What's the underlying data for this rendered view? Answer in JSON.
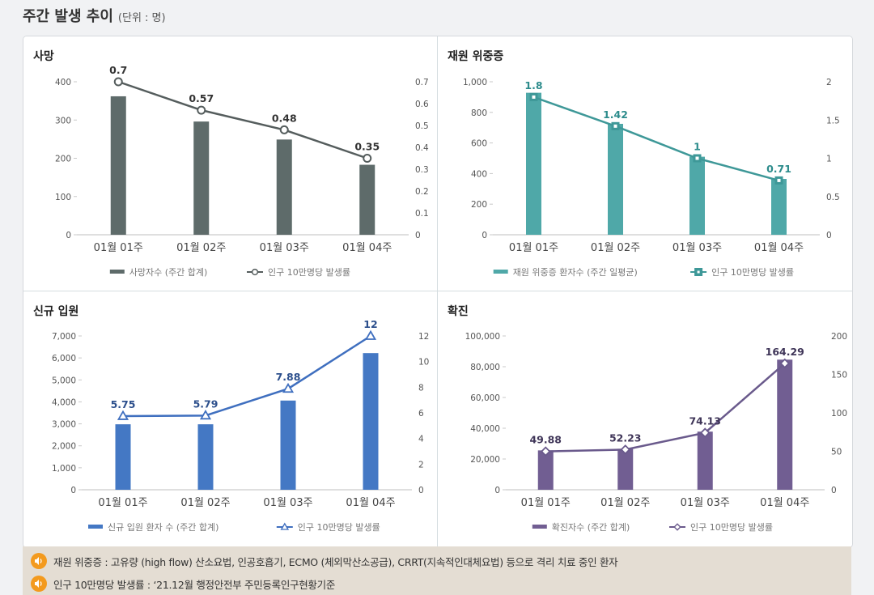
{
  "header": {
    "title": "주간 발생 추이",
    "unit": "(단위 : 명)"
  },
  "panels": [
    {
      "title": "사망",
      "chart_data": {
        "type": "bar",
        "categories": [
          "01월 01주",
          "01월 02주",
          "01월 03주",
          "01월 04주"
        ],
        "series": [
          {
            "name": "사망자수 (주간 합계)",
            "type": "bar",
            "axis": "left",
            "values": [
              362,
              296,
              249,
              183
            ]
          },
          {
            "name": "인구 10만명당 발생률",
            "type": "line",
            "axis": "right",
            "marker": "circle",
            "values": [
              0.7,
              0.57,
              0.48,
              0.35
            ],
            "labels": [
              "0.7",
              "0.57",
              "0.48",
              "0.35"
            ]
          }
        ],
        "y_left": {
          "min": 0,
          "max": 400,
          "ticks": [
            "0",
            "100",
            "200",
            "300",
            "400"
          ]
        },
        "y_right": {
          "min": 0,
          "max": 0.7,
          "ticks": [
            "0",
            "0.1",
            "0.2",
            "0.3",
            "0.4",
            "0.5",
            "0.6",
            "0.7"
          ]
        },
        "colors": {
          "bar": "#5e6b6a",
          "line": "#555d5d",
          "label": "#333333"
        },
        "legend": "bottom"
      }
    },
    {
      "title": "재원 위중증",
      "chart_data": {
        "type": "bar",
        "categories": [
          "01월 01주",
          "01월 02주",
          "01월 03주",
          "01월 04주"
        ],
        "series": [
          {
            "name": "재원 위중증 환자수 (주간 일평균)",
            "type": "bar",
            "axis": "left",
            "values": [
              928,
              725,
              510,
              365
            ]
          },
          {
            "name": "인구 10만명당 발생률",
            "type": "line",
            "axis": "right",
            "marker": "square",
            "values": [
              1.8,
              1.42,
              1,
              0.71
            ],
            "labels": [
              "1.8",
              "1.42",
              "1",
              "0.71"
            ]
          }
        ],
        "y_left": {
          "min": 0,
          "max": 1000,
          "ticks": [
            "0",
            "200",
            "400",
            "600",
            "800",
            "1,000"
          ]
        },
        "y_right": {
          "min": 0,
          "max": 2,
          "ticks": [
            "0",
            "0.5",
            "1",
            "1.5",
            "2"
          ]
        },
        "colors": {
          "bar": "#4fa8a8",
          "line": "#3e9898",
          "label": "#2d8c8c"
        },
        "legend": "bottom"
      }
    },
    {
      "title": "신규 입원",
      "chart_data": {
        "type": "bar",
        "categories": [
          "01월 01주",
          "01월 02주",
          "01월 03주",
          "01월 04주"
        ],
        "series": [
          {
            "name": "신규 입원 환자 수 (주간 합계)",
            "type": "bar",
            "axis": "left",
            "values": [
              2980,
              2980,
              4060,
              6220
            ]
          },
          {
            "name": "인구 10만명당 발생률",
            "type": "line",
            "axis": "right",
            "marker": "triangle",
            "values": [
              5.75,
              5.79,
              7.88,
              12
            ],
            "labels": [
              "5.75",
              "5.79",
              "7.88",
              "12"
            ]
          }
        ],
        "y_left": {
          "min": 0,
          "max": 7000,
          "ticks": [
            "0",
            "1,000",
            "2,000",
            "3,000",
            "4,000",
            "5,000",
            "6,000",
            "7,000"
          ]
        },
        "y_right": {
          "min": 0,
          "max": 12,
          "ticks": [
            "0",
            "2",
            "4",
            "6",
            "8",
            "10",
            "12"
          ]
        },
        "colors": {
          "bar": "#4478c4",
          "line": "#3f6fbf",
          "label": "#2c4f8c"
        },
        "legend": "bottom"
      }
    },
    {
      "title": "확진",
      "chart_data": {
        "type": "bar",
        "categories": [
          "01월 01주",
          "01월 02주",
          "01월 03주",
          "01월 04주"
        ],
        "series": [
          {
            "name": "확진자수 (주간 합계)",
            "type": "bar",
            "axis": "left",
            "values": [
              25600,
              26600,
              37800,
              84600
            ]
          },
          {
            "name": "인구 10만명당 발생률",
            "type": "line",
            "axis": "right",
            "marker": "diamond",
            "values": [
              49.88,
              52.23,
              74.13,
              164.29
            ],
            "labels": [
              "49.88",
              "52.23",
              "74.13",
              "164.29"
            ]
          }
        ],
        "y_left": {
          "min": 0,
          "max": 100000,
          "ticks": [
            "0",
            "20,000",
            "40,000",
            "60,000",
            "80,000",
            "100,000"
          ]
        },
        "y_right": {
          "min": 0,
          "max": 200,
          "ticks": [
            "0",
            "50",
            "100",
            "150",
            "200"
          ]
        },
        "colors": {
          "bar": "#715e92",
          "line": "#6a5a8c",
          "label": "#3f3558"
        },
        "legend": "bottom"
      }
    }
  ],
  "notes": [
    {
      "icon": "speaker-icon",
      "text": "재원 위중증 : 고유량 (high flow) 산소요법, 인공호흡기, ECMO (체외막산소공급), CRRT(지속적인대체요법) 등으로 격리 치료 중인 환자"
    },
    {
      "icon": "speaker-icon",
      "text": "인구 10만명당 발생률 : ‘21.12월 행정안전부 주민등록인구현황기준"
    }
  ]
}
